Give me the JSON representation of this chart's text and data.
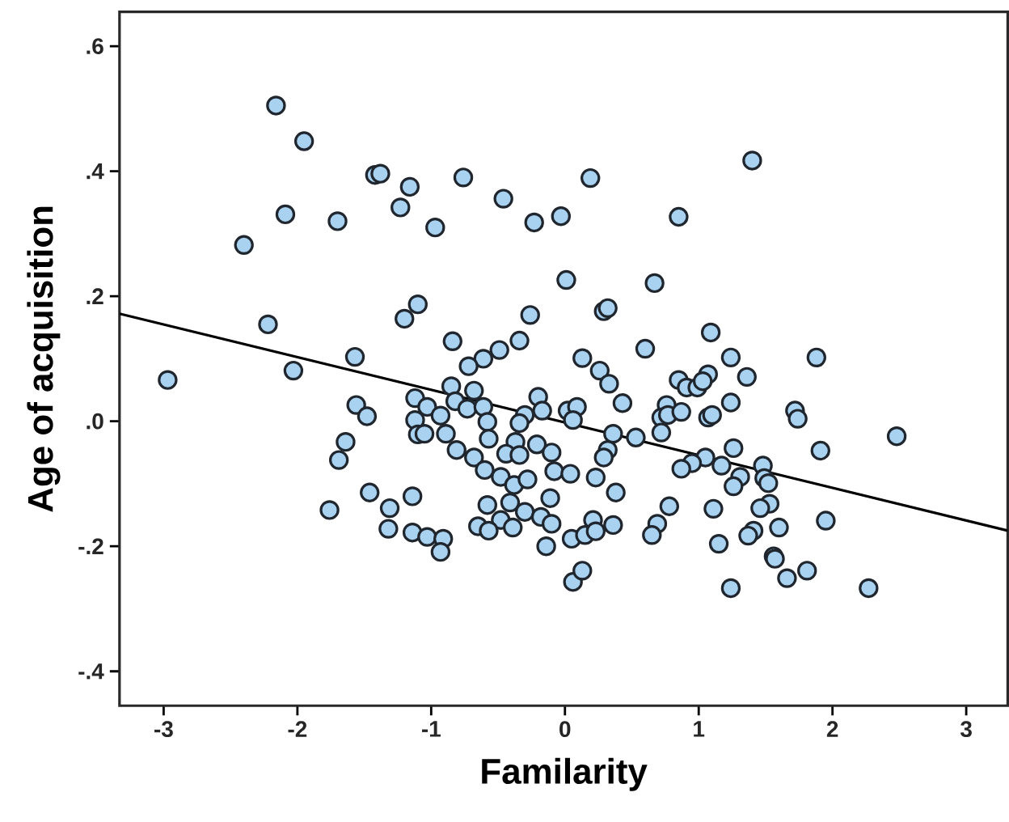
{
  "chart_data": {
    "type": "scatter",
    "xlabel": "Familarity",
    "ylabel": "Age of acquisition",
    "xlim": [
      -3.33,
      3.31
    ],
    "ylim": [
      -0.455,
      0.655
    ],
    "xticks": [
      -3,
      -2,
      -1,
      0,
      1,
      2,
      3
    ],
    "yticks": [
      {
        "value": -0.4,
        "label": "-.4"
      },
      {
        "value": -0.2,
        "label": "-.2"
      },
      {
        "value": 0,
        "label": ".0"
      },
      {
        "value": 0.2,
        "label": ".2"
      },
      {
        "value": 0.4,
        "label": ".4"
      },
      {
        "value": 0.6,
        "label": ".6"
      }
    ],
    "grid": false,
    "series": [
      {
        "color": "#a9d1f0",
        "marker": "circle",
        "x": [
          -2.16,
          -1.95,
          -1.42,
          -1.38,
          -1.16,
          -2.09,
          -1.7,
          -1.23,
          -2.4,
          -2.22,
          -1.2,
          -1.1,
          -1.57,
          -2.03,
          -2.97,
          -0.76,
          -0.97,
          -0.46,
          -0.23,
          -0.03,
          0.19,
          0.85,
          0.01,
          0.67,
          -0.26,
          0.29,
          0.32,
          1.09,
          -0.84,
          -0.49,
          -0.61,
          -0.72,
          -0.34,
          0.13,
          0.26,
          0.6,
          0.85,
          1.4,
          1.24,
          1.88,
          1.07,
          1.36,
          -1.56,
          -1.48,
          -1.64,
          -1.69,
          -1.76,
          -1.46,
          -1.31,
          -1.32,
          -1.14,
          -1.14,
          -1.12,
          -1.12,
          -1.1,
          0.33,
          0.91,
          0.99,
          1.03,
          -1.03,
          -0.85,
          -0.68,
          -0.82,
          -0.73,
          -0.61,
          -0.93,
          -1.05,
          -0.89,
          -0.58,
          -0.57,
          -0.2,
          -0.17,
          -0.3,
          -0.34,
          0.02,
          0.09,
          0.06,
          0.43,
          0.36,
          0.53,
          0.32,
          0.29,
          0.76,
          0.72,
          0.77,
          0.87,
          0.72,
          1.07,
          1.05,
          0.95,
          0.87,
          -0.81,
          -0.68,
          -0.6,
          -0.48,
          -0.37,
          -0.44,
          -0.34,
          -0.21,
          -0.1,
          -0.08,
          0.04,
          -0.38,
          -0.28,
          0.23,
          0.38,
          -0.58,
          -0.41,
          -0.3,
          -0.11,
          -0.48,
          -0.18,
          -0.1,
          -0.65,
          -0.57,
          -0.39,
          -0.14,
          -1.03,
          -0.91,
          -0.93,
          0.05,
          0.15,
          0.21,
          0.23,
          0.36,
          0.69,
          0.65,
          0.78,
          1.11,
          1.15,
          0.06,
          0.13,
          1.1,
          1.24,
          1.72,
          1.74,
          2.48,
          1.91,
          1.26,
          1.17,
          1.48,
          1.31,
          1.49,
          1.52,
          1.26,
          1.53,
          1.46,
          1.95,
          1.6,
          1.41,
          1.37,
          1.56,
          1.57,
          1.81,
          1.66,
          1.24,
          2.27
        ],
        "values": [
          0.505,
          0.448,
          0.394,
          0.396,
          0.375,
          0.331,
          0.32,
          0.342,
          0.282,
          0.155,
          0.164,
          0.187,
          0.103,
          0.081,
          0.066,
          0.39,
          0.31,
          0.356,
          0.318,
          0.328,
          0.389,
          0.327,
          0.226,
          0.221,
          0.17,
          0.176,
          0.181,
          0.142,
          0.128,
          0.114,
          0.1,
          0.088,
          0.129,
          0.101,
          0.081,
          0.116,
          0.066,
          0.417,
          0.102,
          0.102,
          0.075,
          0.071,
          0.026,
          0.008,
          -0.033,
          -0.062,
          -0.142,
          -0.114,
          -0.139,
          -0.172,
          -0.12,
          -0.178,
          0.037,
          0.002,
          -0.021,
          0.06,
          0.054,
          0.054,
          0.064,
          0.023,
          0.056,
          0.049,
          0.032,
          0.02,
          0.023,
          0.009,
          -0.02,
          -0.02,
          -0.001,
          -0.028,
          0.039,
          0.017,
          0.01,
          -0.003,
          0.017,
          0.023,
          0.002,
          0.029,
          -0.02,
          -0.026,
          -0.046,
          -0.058,
          0.026,
          0.006,
          0.01,
          0.015,
          -0.018,
          0.006,
          -0.058,
          -0.067,
          -0.076,
          -0.046,
          -0.058,
          -0.078,
          -0.089,
          -0.033,
          -0.052,
          -0.054,
          -0.037,
          -0.05,
          -0.08,
          -0.084,
          -0.102,
          -0.093,
          -0.09,
          -0.114,
          -0.134,
          -0.13,
          -0.145,
          -0.123,
          -0.158,
          -0.153,
          -0.164,
          -0.168,
          -0.175,
          -0.17,
          -0.2,
          -0.185,
          -0.188,
          -0.209,
          -0.188,
          -0.182,
          -0.158,
          -0.176,
          -0.166,
          -0.164,
          -0.182,
          -0.136,
          -0.14,
          -0.196,
          -0.257,
          -0.239,
          0.01,
          0.03,
          0.017,
          0.004,
          -0.024,
          -0.047,
          -0.043,
          -0.071,
          -0.071,
          -0.089,
          -0.091,
          -0.099,
          -0.104,
          -0.132,
          -0.139,
          -0.159,
          -0.17,
          -0.175,
          -0.183,
          -0.216,
          -0.22,
          -0.239,
          -0.251,
          -0.267,
          -0.267
        ]
      },
      {
        "type": "line",
        "marker": "none",
        "color": "#000000",
        "x": [
          -3.33,
          3.31
        ],
        "values": [
          0.172,
          -0.175
        ]
      }
    ]
  }
}
